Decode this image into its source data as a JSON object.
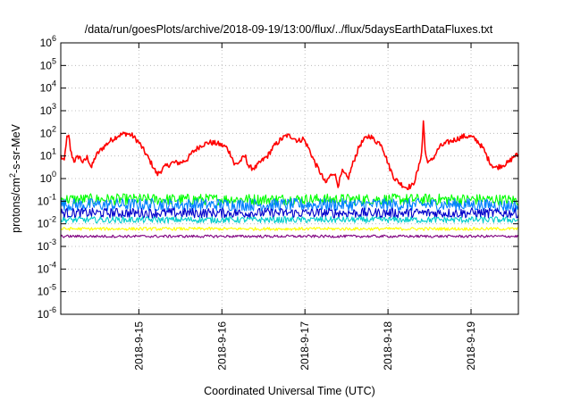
{
  "chart_data": {
    "type": "line",
    "title": "/data/run/goesPlots/archive/2018-09-19/13:00/flux/../flux/5daysEarthDataFluxes.txt",
    "xlabel": "Coordinated Universal Time (UTC)",
    "ylabel": {
      "base": "protons/cm",
      "sup": "2",
      "rest": "-s-sr-MeV"
    },
    "scale_y": "log",
    "ylim": [
      1e-06,
      1000000.0
    ],
    "y_ticks": [
      {
        "v": 1e-06,
        "exp": "-6"
      },
      {
        "v": 1e-05,
        "exp": "-5"
      },
      {
        "v": 0.0001,
        "exp": "-4"
      },
      {
        "v": 0.001,
        "exp": "-3"
      },
      {
        "v": 0.01,
        "exp": "-2"
      },
      {
        "v": 0.1,
        "exp": "-1"
      },
      {
        "v": 1,
        "exp": "0"
      },
      {
        "v": 10,
        "exp": "1"
      },
      {
        "v": 100,
        "exp": "2"
      },
      {
        "v": 1000,
        "exp": "3"
      },
      {
        "v": 10000,
        "exp": "4"
      },
      {
        "v": 100000,
        "exp": "5"
      },
      {
        "v": 1000000,
        "exp": "6"
      }
    ],
    "xlim_days": [
      14.06,
      19.57
    ],
    "x_ticks": [
      {
        "day": 15,
        "label": "2018-9-15"
      },
      {
        "day": 16,
        "label": "2018-9-16"
      },
      {
        "day": 17,
        "label": "2018-9-17"
      },
      {
        "day": 18,
        "label": "2018-9-18"
      },
      {
        "day": 19,
        "label": "2018-9-19"
      }
    ],
    "grid": true,
    "legend": "none",
    "series": [
      {
        "color": "#ff0000",
        "noise": 0.12,
        "points": [
          [
            14.06,
            10
          ],
          [
            14.1,
            5
          ],
          [
            14.13,
            60
          ],
          [
            14.16,
            70
          ],
          [
            14.18,
            15
          ],
          [
            14.22,
            6
          ],
          [
            14.28,
            10
          ],
          [
            14.33,
            5
          ],
          [
            14.38,
            9
          ],
          [
            14.43,
            3
          ],
          [
            14.48,
            10
          ],
          [
            14.55,
            20
          ],
          [
            14.65,
            45
          ],
          [
            14.75,
            80
          ],
          [
            14.85,
            100
          ],
          [
            14.92,
            80
          ],
          [
            15.0,
            40
          ],
          [
            15.1,
            10
          ],
          [
            15.18,
            3
          ],
          [
            15.22,
            1.5
          ],
          [
            15.3,
            3
          ],
          [
            15.4,
            5
          ],
          [
            15.5,
            5
          ],
          [
            15.58,
            7
          ],
          [
            15.65,
            15
          ],
          [
            15.75,
            30
          ],
          [
            15.85,
            40
          ],
          [
            15.95,
            35
          ],
          [
            16.05,
            25
          ],
          [
            16.12,
            10
          ],
          [
            16.15,
            4
          ],
          [
            16.2,
            5
          ],
          [
            16.28,
            10
          ],
          [
            16.33,
            3
          ],
          [
            16.4,
            3
          ],
          [
            16.48,
            6
          ],
          [
            16.55,
            10
          ],
          [
            16.62,
            25
          ],
          [
            16.7,
            50
          ],
          [
            16.78,
            80
          ],
          [
            16.85,
            70
          ],
          [
            16.92,
            45
          ],
          [
            16.98,
            60
          ],
          [
            17.05,
            20
          ],
          [
            17.12,
            5
          ],
          [
            17.18,
            2
          ],
          [
            17.25,
            0.6
          ],
          [
            17.28,
            1
          ],
          [
            17.35,
            2
          ],
          [
            17.4,
            0.5
          ],
          [
            17.45,
            2
          ],
          [
            17.52,
            1
          ],
          [
            17.58,
            5
          ],
          [
            17.66,
            30
          ],
          [
            17.73,
            60
          ],
          [
            17.78,
            80
          ],
          [
            17.85,
            45
          ],
          [
            17.92,
            35
          ],
          [
            17.98,
            8
          ],
          [
            18.02,
            3
          ],
          [
            18.08,
            1
          ],
          [
            18.15,
            0.6
          ],
          [
            18.22,
            0.4
          ],
          [
            18.3,
            0.5
          ],
          [
            18.37,
            3
          ],
          [
            18.41,
            20
          ],
          [
            18.43,
            800
          ],
          [
            18.44,
            30
          ],
          [
            18.46,
            8
          ],
          [
            18.5,
            5
          ],
          [
            18.56,
            10
          ],
          [
            18.62,
            25
          ],
          [
            18.72,
            40
          ],
          [
            18.82,
            55
          ],
          [
            18.92,
            75
          ],
          [
            19.0,
            70
          ],
          [
            19.08,
            45
          ],
          [
            19.15,
            20
          ],
          [
            19.2,
            8
          ],
          [
            19.25,
            4
          ],
          [
            19.3,
            3
          ],
          [
            19.38,
            4
          ],
          [
            19.45,
            5
          ],
          [
            19.52,
            10
          ],
          [
            19.57,
            11
          ]
        ]
      },
      {
        "color": "#00ff00",
        "points": [
          [
            14.06,
            0.12
          ],
          [
            15.0,
            0.12
          ],
          [
            16.0,
            0.12
          ],
          [
            17.0,
            0.12
          ],
          [
            18.0,
            0.12
          ],
          [
            19.0,
            0.12
          ],
          [
            19.57,
            0.11
          ]
        ],
        "noise": 0.25
      },
      {
        "color": "#0080ff",
        "points": [
          [
            14.06,
            0.07
          ],
          [
            15.0,
            0.07
          ],
          [
            16.0,
            0.07
          ],
          [
            17.0,
            0.07
          ],
          [
            18.0,
            0.07
          ],
          [
            19.0,
            0.07
          ],
          [
            19.57,
            0.06
          ]
        ],
        "noise": 0.28
      },
      {
        "color": "#0000cc",
        "points": [
          [
            14.06,
            0.03
          ],
          [
            15.0,
            0.03
          ],
          [
            16.0,
            0.03
          ],
          [
            17.0,
            0.03
          ],
          [
            18.0,
            0.03
          ],
          [
            19.0,
            0.03
          ],
          [
            19.57,
            0.03
          ]
        ],
        "noise": 0.22
      },
      {
        "color": "#00cccc",
        "points": [
          [
            14.06,
            0.015
          ],
          [
            15.0,
            0.015
          ],
          [
            16.0,
            0.015
          ],
          [
            17.0,
            0.015
          ],
          [
            18.0,
            0.015
          ],
          [
            19.0,
            0.015
          ],
          [
            19.57,
            0.015
          ]
        ],
        "noise": 0.14
      },
      {
        "color": "#ffff00",
        "points": [
          [
            14.06,
            0.006
          ],
          [
            15.0,
            0.006
          ],
          [
            16.0,
            0.006
          ],
          [
            17.0,
            0.006
          ],
          [
            18.0,
            0.006
          ],
          [
            19.0,
            0.006
          ],
          [
            19.57,
            0.006
          ]
        ],
        "noise": 0.07
      },
      {
        "color": "#800080",
        "points": [
          [
            14.06,
            0.0028
          ],
          [
            15.0,
            0.0028
          ],
          [
            16.0,
            0.0028
          ],
          [
            17.0,
            0.0028
          ],
          [
            18.0,
            0.0028
          ],
          [
            19.0,
            0.0028
          ],
          [
            19.57,
            0.0028
          ]
        ],
        "noise": 0.06
      }
    ]
  }
}
